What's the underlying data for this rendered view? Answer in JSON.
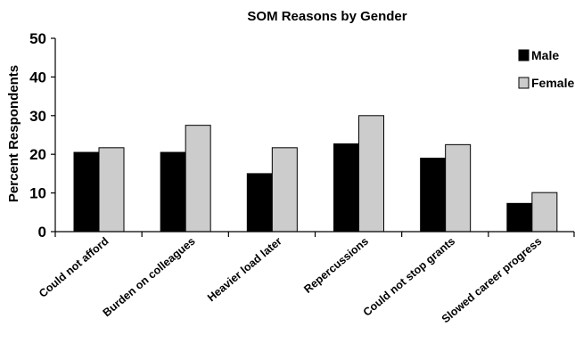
{
  "chart_data": {
    "type": "bar",
    "title": "SOM Reasons by Gender",
    "xlabel": "",
    "ylabel": "Percent Respondents",
    "categories": [
      "Could not afford",
      "Burden on colleagues",
      "Heavier load later",
      "Repercussions",
      "Could not stop grants",
      "Slowed career progress"
    ],
    "series": [
      {
        "name": "Male",
        "color": "#000000",
        "values": [
          20.5,
          20.5,
          15,
          22.7,
          19,
          7.3
        ]
      },
      {
        "name": "Female",
        "color": "#cccccc",
        "values": [
          21.7,
          27.5,
          21.7,
          30,
          22.5,
          10.1
        ]
      }
    ],
    "ylim": [
      0,
      50
    ],
    "yticks": [
      0,
      10,
      20,
      30,
      40,
      50
    ],
    "grid": false,
    "legend_position": "top-right"
  }
}
